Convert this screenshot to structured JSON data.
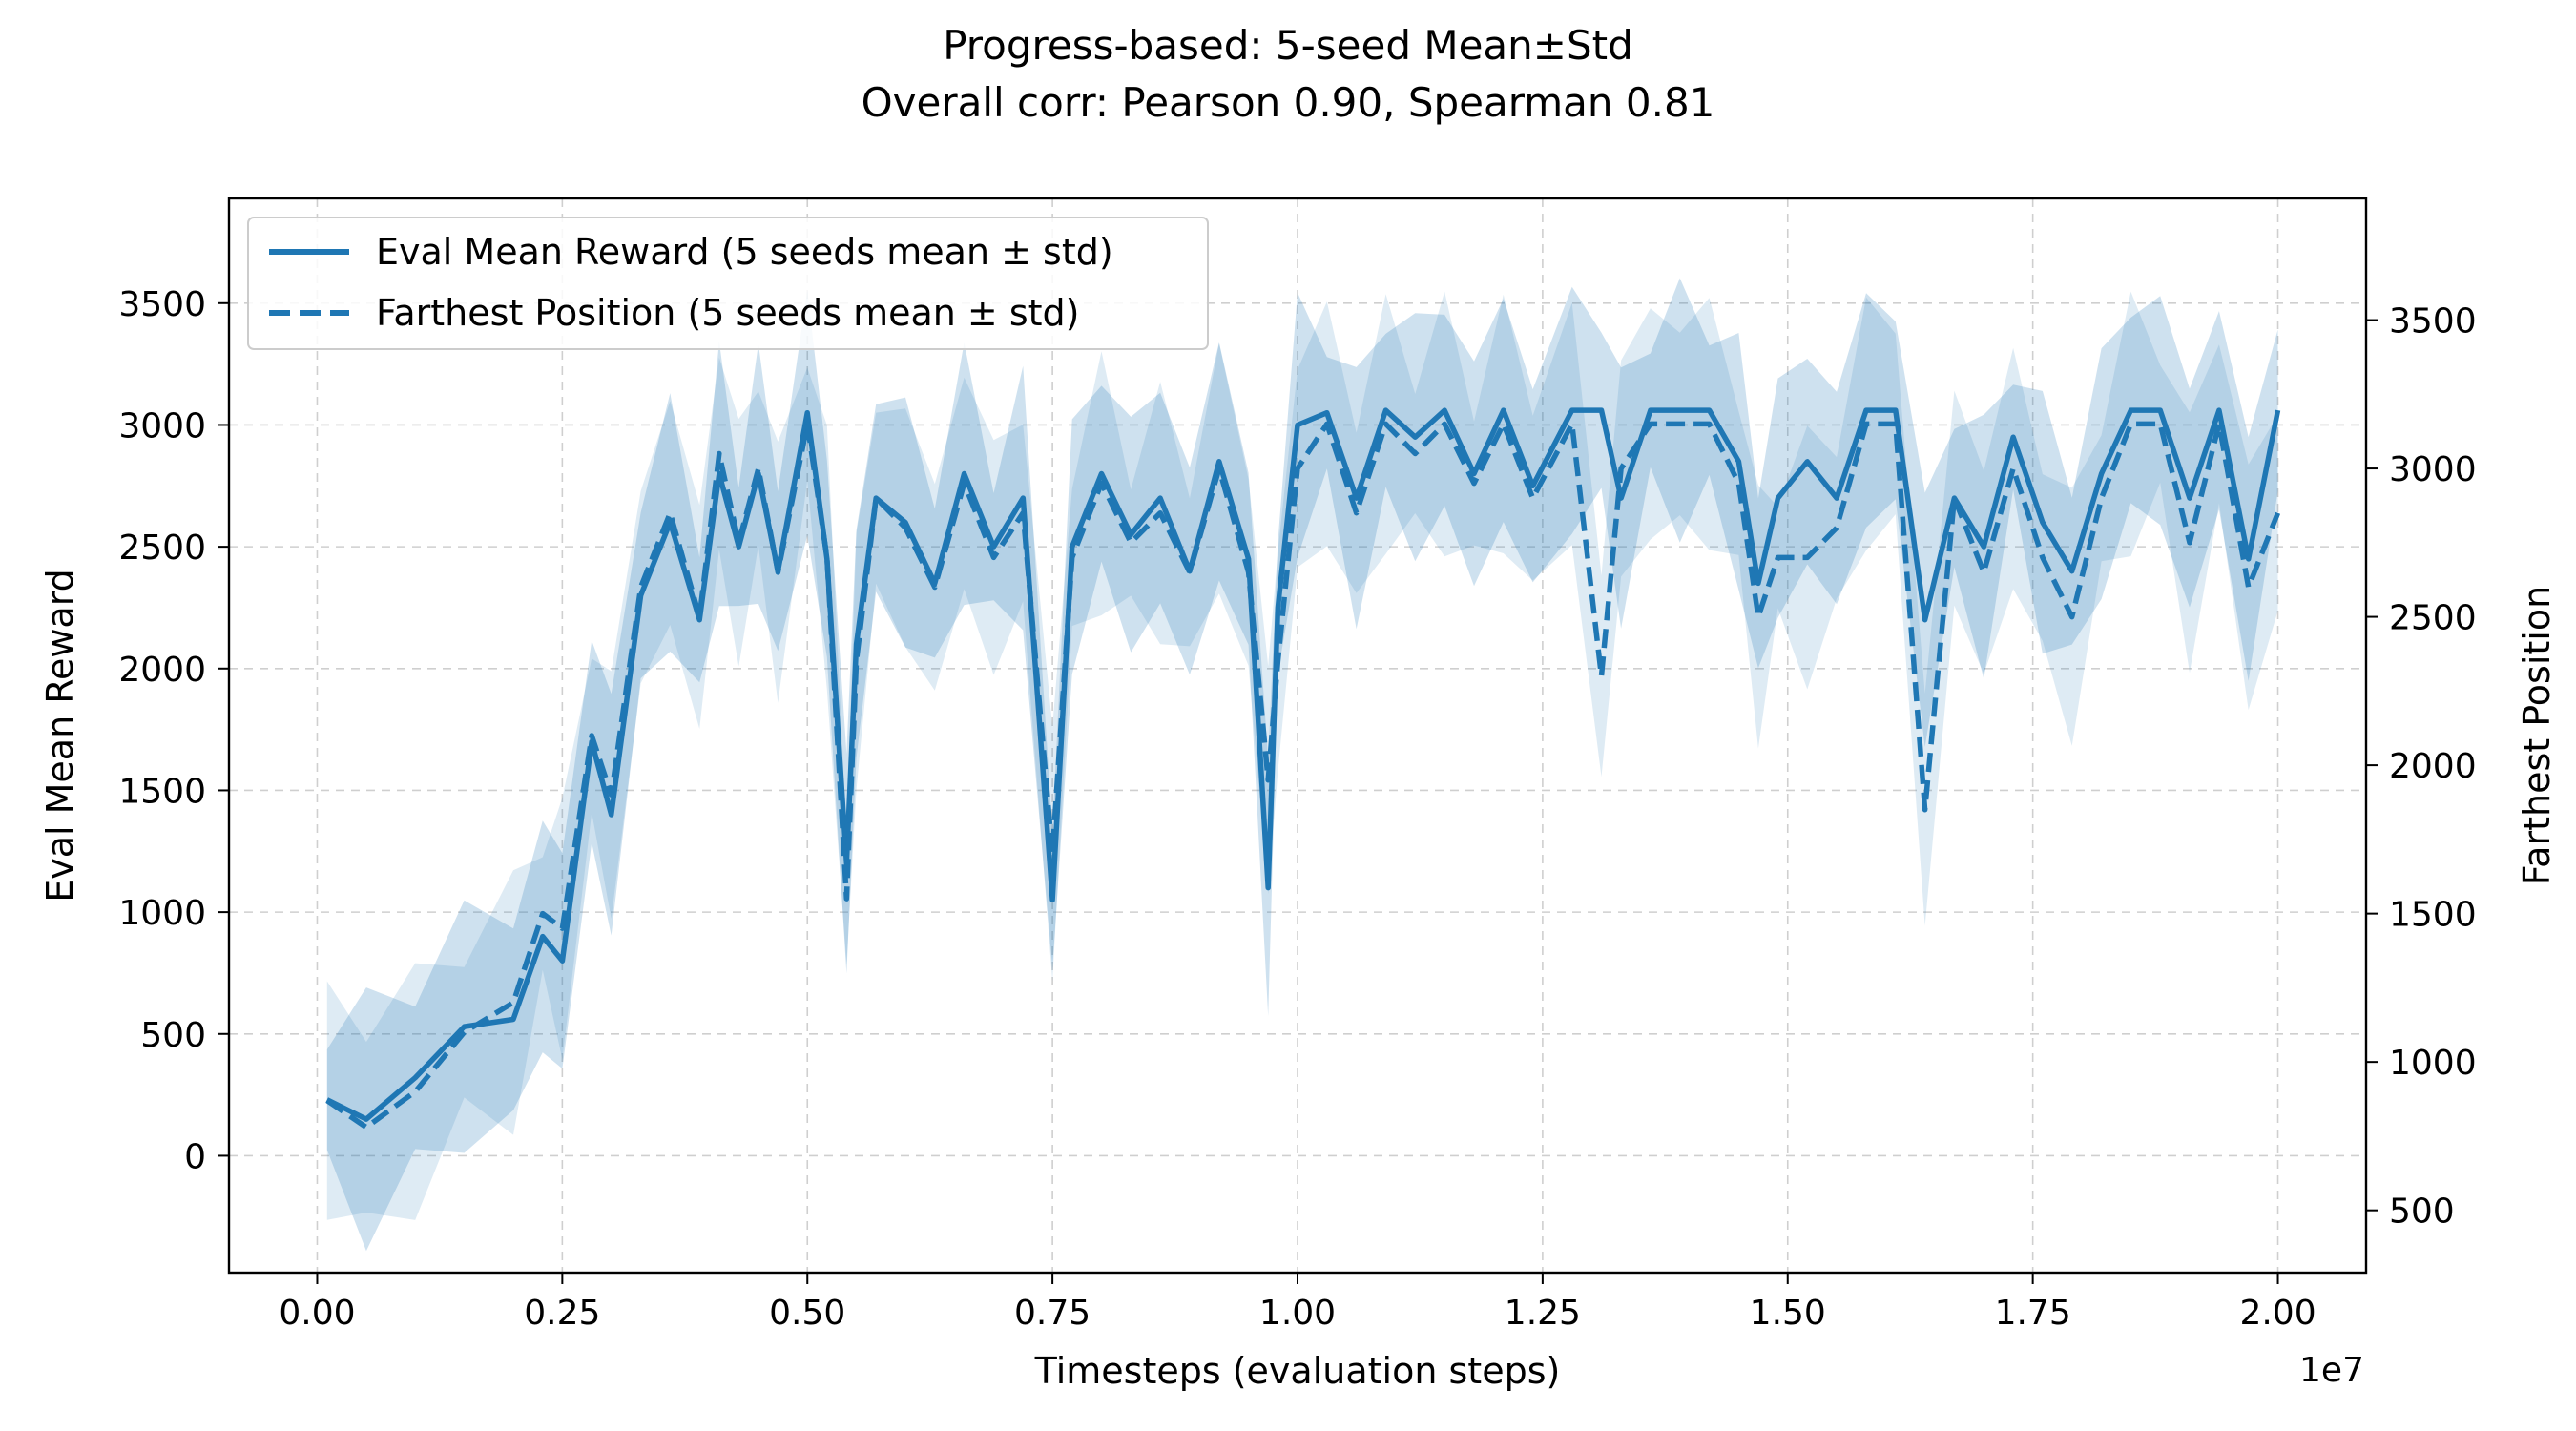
{
  "chart_data": {
    "type": "line",
    "title": "Progress-based: 5-seed Mean±Std",
    "subtitle": "Overall corr: Pearson 0.90, Spearman 0.81",
    "xlabel": "Timesteps (evaluation steps)",
    "x_offset_label": "1e7",
    "ylabel": "Eval Mean Reward",
    "y2label": "Farthest Position",
    "xlim": [
      -0.09,
      2.09
    ],
    "ylim": [
      -480,
      3930
    ],
    "y2lim": [
      290,
      3910
    ],
    "grid": true,
    "legend_position": "top-left",
    "colors": {
      "line": "#1f77b4",
      "band_primary": "#1f77b4",
      "band_secondary": "#1f77b4"
    },
    "x_ticks": [
      "0.00",
      "0.25",
      "0.50",
      "0.75",
      "1.00",
      "1.25",
      "1.50",
      "1.75",
      "2.00"
    ],
    "y_ticks": [
      "0",
      "500",
      "1000",
      "1500",
      "2000",
      "2500",
      "3000",
      "3500"
    ],
    "y2_ticks": [
      "500",
      "1000",
      "1500",
      "2000",
      "2500",
      "3000",
      "3500"
    ],
    "series": [
      {
        "name": "Eval Mean Reward (5 seeds mean ± std)",
        "style": "solid",
        "axis": "left",
        "x": [
          0.01,
          0.05,
          0.1,
          0.15,
          0.2,
          0.23,
          0.25,
          0.28,
          0.3,
          0.33,
          0.36,
          0.39,
          0.41,
          0.43,
          0.45,
          0.47,
          0.5,
          0.52,
          0.54,
          0.55,
          0.57,
          0.6,
          0.63,
          0.66,
          0.69,
          0.72,
          0.75,
          0.77,
          0.8,
          0.83,
          0.86,
          0.89,
          0.92,
          0.95,
          0.97,
          0.98,
          1.0,
          1.03,
          1.06,
          1.09,
          1.12,
          1.15,
          1.18,
          1.21,
          1.24,
          1.28,
          1.31,
          1.33,
          1.36,
          1.39,
          1.42,
          1.45,
          1.47,
          1.49,
          1.52,
          1.55,
          1.58,
          1.61,
          1.64,
          1.67,
          1.7,
          1.73,
          1.76,
          1.79,
          1.82,
          1.85,
          1.88,
          1.91,
          1.94,
          1.97,
          2.0
        ],
        "y": [
          230,
          150,
          320,
          530,
          560,
          900,
          800,
          1700,
          1400,
          2300,
          2600,
          2200,
          2800,
          2500,
          2800,
          2400,
          3050,
          2450,
          1200,
          2100,
          2700,
          2600,
          2350,
          2800,
          2500,
          2700,
          1050,
          2500,
          2800,
          2550,
          2700,
          2400,
          2850,
          2450,
          1100,
          2250,
          3000,
          3050,
          2700,
          3060,
          2950,
          3060,
          2800,
          3060,
          2750,
          3060,
          3060,
          2700,
          3060,
          3060,
          3060,
          2850,
          2350,
          2700,
          2850,
          2700,
          3060,
          3060,
          2200,
          2700,
          2500,
          2950,
          2600,
          2400,
          2800,
          3060,
          3060,
          2700,
          3060,
          2450,
          3060
        ]
      },
      {
        "name": "Farthest Position (5 seeds mean ± std)",
        "style": "dashed",
        "axis": "right",
        "x": [
          0.01,
          0.05,
          0.1,
          0.15,
          0.2,
          0.23,
          0.25,
          0.28,
          0.3,
          0.33,
          0.36,
          0.39,
          0.41,
          0.43,
          0.45,
          0.47,
          0.5,
          0.52,
          0.54,
          0.55,
          0.57,
          0.6,
          0.63,
          0.66,
          0.69,
          0.72,
          0.75,
          0.77,
          0.8,
          0.83,
          0.86,
          0.89,
          0.92,
          0.95,
          0.97,
          0.98,
          1.0,
          1.03,
          1.06,
          1.09,
          1.12,
          1.15,
          1.18,
          1.21,
          1.24,
          1.28,
          1.31,
          1.33,
          1.36,
          1.39,
          1.42,
          1.45,
          1.47,
          1.49,
          1.52,
          1.55,
          1.58,
          1.61,
          1.64,
          1.67,
          1.7,
          1.73,
          1.76,
          1.79,
          1.82,
          1.85,
          1.88,
          1.91,
          1.94,
          1.97,
          2.0
        ],
        "y": [
          870,
          780,
          900,
          1100,
          1200,
          1500,
          1450,
          2100,
          1900,
          2600,
          2850,
          2500,
          3050,
          2750,
          3000,
          2650,
          3150,
          2700,
          1550,
          2350,
          2900,
          2800,
          2600,
          2950,
          2700,
          2850,
          1700,
          2700,
          2950,
          2750,
          2850,
          2650,
          3000,
          2650,
          1950,
          2350,
          3000,
          3150,
          2850,
          3150,
          3050,
          3150,
          2950,
          3150,
          2900,
          3150,
          2300,
          3000,
          3150,
          3150,
          3150,
          2950,
          2500,
          2700,
          2700,
          2800,
          3150,
          3150,
          1850,
          2900,
          2650,
          3000,
          2700,
          2500,
          2900,
          3150,
          3150,
          2750,
          3150,
          2600,
          2850
        ]
      }
    ]
  }
}
